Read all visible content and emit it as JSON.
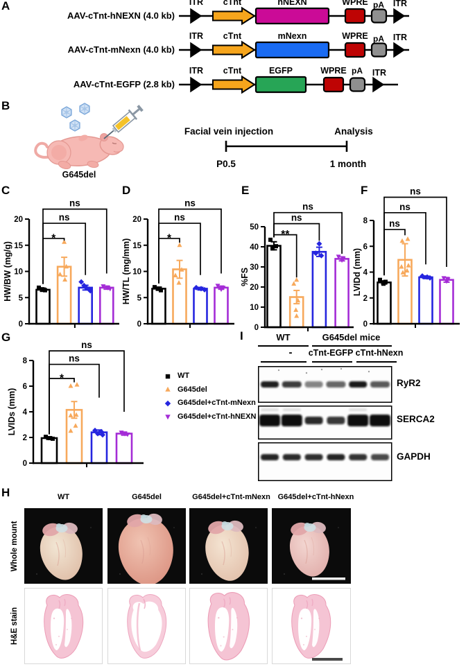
{
  "panel_letters": {
    "a": "A",
    "b": "B",
    "c": "C",
    "d": "D",
    "e": "E",
    "f": "F",
    "g": "G",
    "h": "H",
    "i": "I"
  },
  "panel_a": {
    "element_colors": {
      "promoter": "#F6A51C",
      "wpre": "#BE0404",
      "pa": "#8F8F8F",
      "itr": "#000000"
    },
    "constructs": [
      {
        "label": "AAV-cTnt-hNEXN (4.0 kb)",
        "itr1": "ITR",
        "promoter": "cTnt",
        "gene": "hNEXN",
        "gene_color": "#CB0B97",
        "wpre": "WPRE",
        "pa": "pA",
        "itr2": "ITR",
        "size_class": "long"
      },
      {
        "label": "AAV-cTnt-mNexn (4.0 kb)",
        "itr1": "ITR",
        "promoter": "cTnt",
        "gene": "mNexn",
        "gene_color": "#1A6BF2",
        "wpre": "WPRE",
        "pa": "pA",
        "itr2": "ITR",
        "size_class": "long"
      },
      {
        "label": "AAV-cTnt-EGFP  (2.8 kb)",
        "itr1": "ITR",
        "promoter": "cTnt",
        "gene": "EGFP",
        "gene_color": "#27A556",
        "wpre": "WPRE",
        "pa": "pA",
        "itr2": "ITR",
        "size_class": "short"
      }
    ]
  },
  "panel_b": {
    "mouse_label": "G645del",
    "injection_label": "Facial vein injection",
    "analysis_label": "Analysis",
    "start_time": "P0.5",
    "end_time": "1 month"
  },
  "groups": [
    {
      "label": "WT",
      "color": "#000000",
      "marker": "square"
    },
    {
      "label": "G645del",
      "color": "#F7A95C",
      "marker": "triangle-up"
    },
    {
      "label": "G645del+cTnt-mNexn",
      "color": "#2525DF",
      "marker": "diamond"
    },
    {
      "label": "G645del+cTnt-hNEXN",
      "color": "#A42CD6",
      "marker": "triangle-down"
    }
  ],
  "chart_data": [
    {
      "panel": "C",
      "type": "bar",
      "ylabel": "HW/BW (mg/g)",
      "ylim": [
        0,
        20
      ],
      "yticks": [
        0,
        5,
        10,
        15,
        20
      ],
      "categories": [
        "WT",
        "G645del",
        "G645del+cTnt-mNexn",
        "G645del+cTnt-hNEXN"
      ],
      "values": [
        6.5,
        10.9,
        6.9,
        6.9
      ],
      "errors": [
        0.3,
        1.8,
        0.45,
        0.3
      ],
      "points": [
        [
          6.9,
          6.6,
          6.4
        ],
        [
          15.6,
          10.9,
          9.4,
          8.4
        ],
        [
          8.0,
          7.3,
          6.9,
          6.6,
          6.3
        ],
        [
          7.2,
          6.9,
          6.7
        ]
      ],
      "jitter": [
        [
          -6,
          -1,
          3
        ],
        [
          0,
          3,
          -6,
          1
        ],
        [
          -6,
          -2,
          1,
          5,
          7
        ],
        [
          -5,
          2,
          5
        ]
      ],
      "sig": [
        {
          "to": 1,
          "label": "*",
          "line": 16.3,
          "drop": 15.9
        },
        {
          "to": 2,
          "label": "ns",
          "line": 19.2,
          "drop": 9.3
        },
        {
          "to": 3,
          "label": "ns",
          "line": 21.9,
          "drop": 9.6
        }
      ],
      "sig_base": 7.6
    },
    {
      "panel": "D",
      "type": "bar",
      "ylabel": "HW/TL (mg/mm)",
      "ylim": [
        0,
        20
      ],
      "yticks": [
        0,
        5,
        10,
        15,
        20
      ],
      "categories": [
        "WT",
        "G645del",
        "G645del+cTnt-mNexn",
        "G645del+cTnt-hNEXN"
      ],
      "values": [
        6.7,
        10.4,
        6.7,
        6.9
      ],
      "errors": [
        0.3,
        1.7,
        0.25,
        0.3
      ],
      "points": [
        [
          7.0,
          6.7,
          6.4
        ],
        [
          15.0,
          10.3,
          9.2,
          7.8
        ],
        [
          6.9,
          6.7,
          6.5
        ],
        [
          7.3,
          6.9,
          6.6
        ]
      ],
      "jitter": [
        [
          -6,
          -1,
          3
        ],
        [
          0,
          3,
          -6,
          -1
        ],
        [
          -6,
          1,
          6
        ],
        [
          -5,
          3,
          0
        ]
      ],
      "sig": [
        {
          "to": 1,
          "label": "*",
          "line": 16.3,
          "drop": 15.5
        },
        {
          "to": 2,
          "label": "ns",
          "line": 19.2,
          "drop": 9.3
        },
        {
          "to": 3,
          "label": "ns",
          "line": 21.9,
          "drop": 9.6
        }
      ],
      "sig_base": 7.7
    },
    {
      "panel": "E",
      "type": "bar",
      "ylabel": "%FS",
      "ylim": [
        0,
        50
      ],
      "yticks": [
        0,
        10,
        20,
        30,
        40,
        50
      ],
      "categories": [
        "WT",
        "G645del",
        "G645del+cTnt-mNexn",
        "G645del+cTnt-hNEXN"
      ],
      "values": [
        40.5,
        15,
        37.5,
        34
      ],
      "errors": [
        2,
        3.3,
        2.3,
        1
      ],
      "points": [
        [
          43.5,
          40.3,
          39.2
        ],
        [
          23.5,
          21.5,
          13.2,
          8.5,
          5.5
        ],
        [
          41.5,
          36.8,
          35.6
        ],
        [
          35.2,
          34.2,
          33.4
        ]
      ],
      "jitter": [
        [
          -5,
          3,
          -2
        ],
        [
          0,
          -4,
          2,
          -1,
          0
        ],
        [
          0,
          -5,
          3
        ],
        [
          -5,
          2,
          0
        ]
      ],
      "sig": [
        {
          "to": 1,
          "label": "**",
          "line": 46,
          "drop": 24.8
        },
        {
          "to": 2,
          "label": "ns",
          "line": 51.5,
          "drop": 43
        },
        {
          "to": 3,
          "label": "ns",
          "line": 57,
          "drop": 36.5
        }
      ],
      "sig_base": 44.7
    },
    {
      "panel": "F",
      "type": "bar",
      "ylabel": "LVIDd (mm)",
      "ylim": [
        0,
        8
      ],
      "yticks": [
        0,
        2,
        4,
        6,
        8
      ],
      "categories": [
        "WT",
        "G645del",
        "G645del+cTnt-mNexn",
        "G645del+cTnt-hNEXN"
      ],
      "values": [
        3.2,
        4.95,
        3.6,
        3.4
      ],
      "errors": [
        0.12,
        1.25,
        0.1,
        0.18
      ],
      "points": [
        [
          3.4,
          3.25,
          3.1
        ],
        [
          6.55,
          6.4,
          4.5,
          4.4,
          4.1,
          3.95
        ],
        [
          3.7,
          3.62,
          3.55
        ],
        [
          3.55,
          3.45,
          3.3
        ]
      ],
      "jitter": [
        [
          -6,
          2,
          -1
        ],
        [
          4,
          -4,
          5,
          -5,
          3,
          -3
        ],
        [
          -5,
          2,
          6
        ],
        [
          -4,
          2,
          0
        ]
      ],
      "sig": [
        {
          "to": 1,
          "label": "ns",
          "line": 7.3,
          "drop": 6.85
        },
        {
          "to": 2,
          "label": "ns",
          "line": 8.6,
          "drop": 4.6
        },
        {
          "to": 3,
          "label": "ns",
          "line": 9.8,
          "drop": 4.4
        }
      ],
      "sig_base": 3.75
    },
    {
      "panel": "G",
      "type": "bar",
      "ylabel": "LVIDs (mm)",
      "ylim": [
        0,
        8
      ],
      "yticks": [
        0,
        2,
        4,
        6,
        8
      ],
      "categories": [
        "WT",
        "G645del",
        "G645del+cTnt-mNexn",
        "G645del+cTnt-hNEXN"
      ],
      "values": [
        1.95,
        4.15,
        2.4,
        2.3
      ],
      "errors": [
        0.1,
        0.65,
        0.18,
        0.12
      ],
      "points": [
        [
          2.05,
          1.95,
          1.9
        ],
        [
          6.1,
          6.0,
          3.75,
          3.7,
          2.9,
          2.5
        ],
        [
          2.55,
          2.45,
          2.3,
          2.2
        ],
        [
          2.4,
          2.3,
          2.25
        ]
      ],
      "jitter": [
        [
          -5,
          1,
          5
        ],
        [
          4,
          -5,
          3,
          -5,
          2,
          -5
        ],
        [
          -6,
          3,
          -2,
          5
        ],
        [
          -4,
          1,
          5
        ]
      ],
      "sig": [
        {
          "to": 1,
          "label": "*",
          "line": 6.6,
          "drop": 6.3
        },
        {
          "to": 2,
          "label": "ns",
          "line": 7.7,
          "drop": 5.1
        },
        {
          "to": 3,
          "label": "ns",
          "line": 8.75,
          "drop": 4.0
        }
      ],
      "sig_base": 2.25
    }
  ],
  "panel_i": {
    "group_headers": [
      {
        "label": "WT"
      },
      {
        "label": "G645del mice"
      }
    ],
    "treatments": [
      "-",
      "cTnt-EGFP",
      "cTnt-hNexn"
    ],
    "blots": [
      {
        "label": "RyR2",
        "intensities": [
          0.92,
          0.8,
          0.5,
          0.62,
          0.95,
          0.68
        ]
      },
      {
        "label": "SERCA2",
        "intensities": [
          1,
          1,
          0.88,
          0.82,
          1,
          1
        ]
      },
      {
        "label": "GAPDH",
        "intensities": [
          0.9,
          0.88,
          0.86,
          0.9,
          0.84,
          0.75
        ]
      }
    ]
  },
  "panel_h": {
    "columns": [
      "WT",
      "G645del",
      "G645del+cTnt-mNexn",
      "G645del+cTnt-hNexn"
    ],
    "row_labels": [
      "Whole mount",
      "H&E stain"
    ]
  }
}
